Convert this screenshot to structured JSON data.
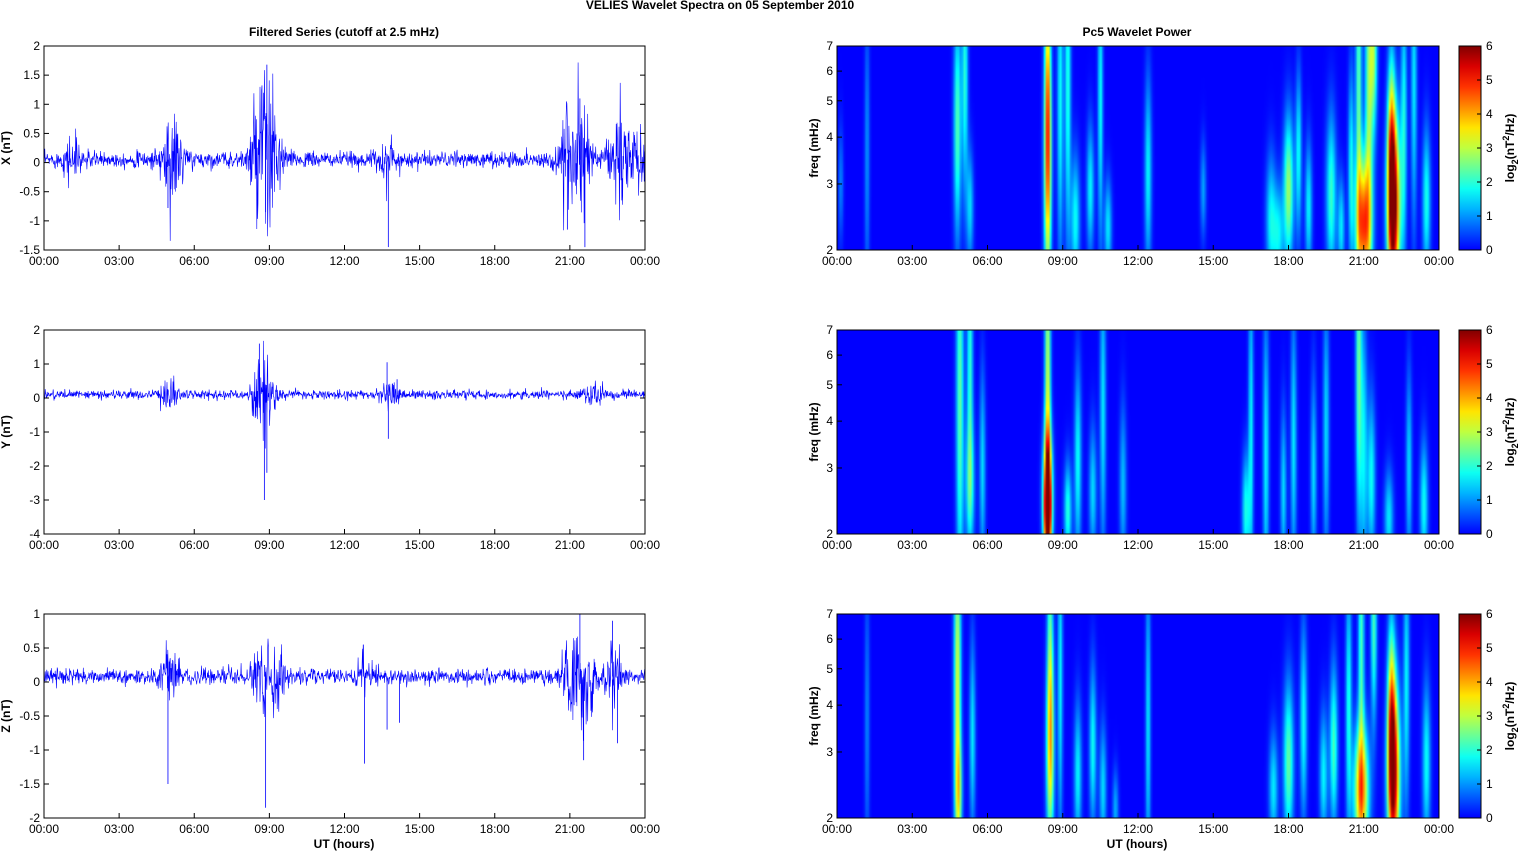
{
  "figure": {
    "title": "VELIES Wavelet Spectra on 05 September 2010",
    "left_title": "Filtered Series (cutoff at 2.5 mHz)",
    "right_title": "Pc5 Wavelet Power",
    "xlabel": "UT (hours)"
  },
  "colors": {
    "trace": "#0000ff",
    "background": "#00008f"
  },
  "chart_data": [
    {
      "type": "line",
      "name": "x-series",
      "ylabel": "X (nT)",
      "x_ticks": [
        "00:00",
        "03:00",
        "06:00",
        "09:00",
        "12:00",
        "15:00",
        "18:00",
        "21:00",
        "00:00"
      ],
      "xlim": [
        0,
        24
      ],
      "ylim": [
        -1.5,
        2
      ],
      "y_ticks": [
        "2",
        "1.5",
        "1",
        "0.5",
        "0",
        "-0.5",
        "-1",
        "-1.5"
      ],
      "y_tick_values": [
        2,
        1.5,
        1,
        0.5,
        0,
        -0.5,
        -1,
        -1.5
      ],
      "baseline": 0.05,
      "noise": 0.12,
      "bursts": [
        {
          "t": 1.2,
          "amp": 0.35
        },
        {
          "t": 4.9,
          "amp": 0.55
        },
        {
          "t": 5.3,
          "amp": 0.4
        },
        {
          "t": 8.5,
          "amp": 0.55
        },
        {
          "t": 8.9,
          "amp": 1.3
        },
        {
          "t": 9.3,
          "amp": 0.35
        },
        {
          "t": 13.7,
          "amp": 0.3
        },
        {
          "t": 20.8,
          "amp": 0.85
        },
        {
          "t": 21.5,
          "amp": 1.05
        },
        {
          "t": 22.9,
          "amp": 0.75
        },
        {
          "t": 23.7,
          "amp": 0.5
        }
      ],
      "spikes": [
        {
          "t": 8.9,
          "y": 1.68
        },
        {
          "t": 8.85,
          "y": -0.85
        },
        {
          "t": 13.75,
          "y": -1.45
        },
        {
          "t": 4.95,
          "y": -0.78
        },
        {
          "t": 21.6,
          "y": -1.45
        },
        {
          "t": 21.4,
          "y": 1.1
        },
        {
          "t": 20.9,
          "y": -1.15
        }
      ]
    },
    {
      "type": "line",
      "name": "y-series",
      "ylabel": "Y (nT)",
      "x_ticks": [
        "00:00",
        "03:00",
        "06:00",
        "09:00",
        "12:00",
        "15:00",
        "18:00",
        "21:00",
        "00:00"
      ],
      "xlim": [
        0,
        24
      ],
      "ylim": [
        -4,
        2
      ],
      "y_ticks": [
        "2",
        "1",
        "0",
        "-1",
        "-2",
        "-3",
        "-4"
      ],
      "y_tick_values": [
        2,
        1,
        0,
        -1,
        -2,
        -3,
        -4
      ],
      "baseline": 0.1,
      "noise": 0.12,
      "bursts": [
        {
          "t": 5.0,
          "amp": 0.5
        },
        {
          "t": 8.7,
          "amp": 0.9
        },
        {
          "t": 8.9,
          "amp": 0.5
        },
        {
          "t": 13.8,
          "amp": 0.3
        },
        {
          "t": 22.0,
          "amp": 0.25
        }
      ],
      "spikes": [
        {
          "t": 8.6,
          "y": 1.6
        },
        {
          "t": 8.8,
          "y": -3.0
        },
        {
          "t": 8.9,
          "y": -2.2
        },
        {
          "t": 13.7,
          "y": 1.05
        },
        {
          "t": 13.75,
          "y": -1.2
        },
        {
          "t": 14.1,
          "y": 0.55
        }
      ]
    },
    {
      "type": "line",
      "name": "z-series",
      "ylabel": "Z (nT)",
      "x_ticks": [
        "00:00",
        "03:00",
        "06:00",
        "09:00",
        "12:00",
        "15:00",
        "18:00",
        "21:00",
        "00:00"
      ],
      "xlim": [
        0,
        24
      ],
      "ylim": [
        -2,
        1
      ],
      "y_ticks": [
        "1",
        "0.5",
        "0",
        "-0.5",
        "-1",
        "-1.5",
        "-2"
      ],
      "y_tick_values": [
        1,
        0.5,
        0,
        -0.5,
        -1,
        -1.5,
        -2
      ],
      "baseline": 0.08,
      "noise": 0.1,
      "bursts": [
        {
          "t": 5.0,
          "amp": 0.35
        },
        {
          "t": 8.7,
          "amp": 0.4
        },
        {
          "t": 9.3,
          "amp": 0.3
        },
        {
          "t": 12.8,
          "amp": 0.25
        },
        {
          "t": 21.0,
          "amp": 0.5
        },
        {
          "t": 21.6,
          "amp": 0.6
        },
        {
          "t": 22.7,
          "amp": 0.5
        }
      ],
      "spikes": [
        {
          "t": 4.95,
          "y": -1.5
        },
        {
          "t": 5.0,
          "y": 0.3
        },
        {
          "t": 8.85,
          "y": -1.85
        },
        {
          "t": 8.8,
          "y": 0.25
        },
        {
          "t": 12.8,
          "y": -1.2
        },
        {
          "t": 12.75,
          "y": 0.55
        },
        {
          "t": 13.7,
          "y": -0.7
        },
        {
          "t": 14.2,
          "y": -0.6
        },
        {
          "t": 21.4,
          "y": 1.0
        },
        {
          "t": 21.55,
          "y": -1.15
        },
        {
          "t": 22.7,
          "y": 0.9
        },
        {
          "t": 22.9,
          "y": -0.9
        }
      ]
    },
    {
      "type": "heatmap",
      "name": "x-wavelet",
      "ylabel": "freq (mHz)",
      "cbar_label": "log2(nT2/Hz)",
      "x_ticks": [
        "00:00",
        "03:00",
        "06:00",
        "09:00",
        "12:00",
        "15:00",
        "18:00",
        "21:00",
        "00:00"
      ],
      "xlim": [
        0,
        24
      ],
      "ylim": [
        2,
        7
      ],
      "y_scale": "log",
      "y_ticks": [
        "7",
        "6",
        "5",
        "4",
        "3",
        "2"
      ],
      "y_tick_values": [
        7,
        6,
        5,
        4,
        3,
        2
      ],
      "clim": [
        0,
        6
      ],
      "cbar_ticks": [
        "6",
        "5",
        "4",
        "3",
        "2",
        "1",
        "0"
      ],
      "cbar_tick_values": [
        6,
        5,
        4,
        3,
        2,
        1,
        0
      ],
      "blobs": [
        {
          "t": 0.15,
          "f": 3.0,
          "v": 0.9,
          "w": 0.1,
          "h": 0.35
        },
        {
          "t": 1.2,
          "f": 3.6,
          "v": 1.0,
          "w": 0.1,
          "h": 0.9
        },
        {
          "t": 4.8,
          "f": 4.3,
          "v": 2.3,
          "w": 0.15,
          "h": 0.7
        },
        {
          "t": 5.1,
          "f": 5.8,
          "v": 2.0,
          "w": 0.12,
          "h": 0.7
        },
        {
          "t": 5.3,
          "f": 2.6,
          "v": 1.5,
          "w": 0.14,
          "h": 0.35
        },
        {
          "t": 8.4,
          "f": 3.3,
          "v": 3.4,
          "w": 0.15,
          "h": 0.8
        },
        {
          "t": 8.4,
          "f": 5.5,
          "v": 2.4,
          "w": 0.12,
          "h": 0.8
        },
        {
          "t": 8.9,
          "f": 5.0,
          "v": 1.8,
          "w": 0.12,
          "h": 1.0
        },
        {
          "t": 9.2,
          "f": 5.5,
          "v": 2.0,
          "w": 0.12,
          "h": 1.0
        },
        {
          "t": 9.5,
          "f": 2.4,
          "v": 1.8,
          "w": 0.18,
          "h": 0.4
        },
        {
          "t": 10.1,
          "f": 2.9,
          "v": 1.7,
          "w": 0.15,
          "h": 0.4
        },
        {
          "t": 10.5,
          "f": 5.0,
          "v": 1.8,
          "w": 0.1,
          "h": 0.9
        },
        {
          "t": 10.8,
          "f": 2.3,
          "v": 1.6,
          "w": 0.15,
          "h": 0.3
        },
        {
          "t": 12.4,
          "f": 3.2,
          "v": 1.7,
          "w": 0.14,
          "h": 0.6
        },
        {
          "t": 14.6,
          "f": 2.9,
          "v": 1.1,
          "w": 0.12,
          "h": 0.3
        },
        {
          "t": 17.3,
          "f": 2.4,
          "v": 1.7,
          "w": 0.2,
          "h": 0.4
        },
        {
          "t": 17.6,
          "f": 2.2,
          "v": 1.6,
          "w": 0.2,
          "h": 0.3
        },
        {
          "t": 18.0,
          "f": 2.9,
          "v": 2.8,
          "w": 0.2,
          "h": 0.45
        },
        {
          "t": 18.4,
          "f": 3.6,
          "v": 1.8,
          "w": 0.12,
          "h": 0.5
        },
        {
          "t": 18.8,
          "f": 2.6,
          "v": 1.7,
          "w": 0.14,
          "h": 0.4
        },
        {
          "t": 19.7,
          "f": 2.8,
          "v": 2.1,
          "w": 0.2,
          "h": 0.5
        },
        {
          "t": 20.1,
          "f": 2.3,
          "v": 1.6,
          "w": 0.14,
          "h": 0.3
        },
        {
          "t": 20.5,
          "f": 3.3,
          "v": 1.8,
          "w": 0.12,
          "h": 0.6
        },
        {
          "t": 20.8,
          "f": 5.2,
          "v": 2.4,
          "w": 0.12,
          "h": 1.1
        },
        {
          "t": 21.0,
          "f": 2.35,
          "v": 4.6,
          "w": 0.3,
          "h": 0.4
        },
        {
          "t": 21.2,
          "f": 5.5,
          "v": 2.6,
          "w": 0.15,
          "h": 1.0
        },
        {
          "t": 21.4,
          "f": 6.7,
          "v": 2.5,
          "w": 0.14,
          "h": 0.5
        },
        {
          "t": 22.2,
          "f": 2.6,
          "v": 6.0,
          "w": 0.25,
          "h": 0.55
        },
        {
          "t": 22.1,
          "f": 3.6,
          "v": 3.4,
          "w": 0.15,
          "h": 0.6
        },
        {
          "t": 22.6,
          "f": 4.5,
          "v": 1.8,
          "w": 0.12,
          "h": 0.8
        },
        {
          "t": 23.0,
          "f": 5.5,
          "v": 1.6,
          "w": 0.12,
          "h": 0.9
        },
        {
          "t": 23.5,
          "f": 2.7,
          "v": 1.9,
          "w": 0.16,
          "h": 0.45
        }
      ]
    },
    {
      "type": "heatmap",
      "name": "y-wavelet",
      "ylabel": "freq (mHz)",
      "cbar_label": "log2(nT2/Hz)",
      "x_ticks": [
        "00:00",
        "03:00",
        "06:00",
        "09:00",
        "12:00",
        "15:00",
        "18:00",
        "21:00",
        "00:00"
      ],
      "xlim": [
        0,
        24
      ],
      "ylim": [
        2,
        7
      ],
      "y_scale": "log",
      "y_ticks": [
        "7",
        "6",
        "5",
        "4",
        "3",
        "2"
      ],
      "y_tick_values": [
        7,
        6,
        5,
        4,
        3,
        2
      ],
      "clim": [
        0,
        6
      ],
      "cbar_ticks": [
        "6",
        "5",
        "4",
        "3",
        "2",
        "1",
        "0"
      ],
      "cbar_tick_values": [
        6,
        5,
        4,
        3,
        2,
        1,
        0
      ],
      "blobs": [
        {
          "t": 4.9,
          "f": 4.5,
          "v": 2.4,
          "w": 0.15,
          "h": 1.2
        },
        {
          "t": 5.3,
          "f": 2.7,
          "v": 1.9,
          "w": 0.18,
          "h": 0.4
        },
        {
          "t": 5.3,
          "f": 5.8,
          "v": 2.0,
          "w": 0.12,
          "h": 0.8
        },
        {
          "t": 5.8,
          "f": 3.0,
          "v": 1.5,
          "w": 0.12,
          "h": 0.6
        },
        {
          "t": 8.4,
          "f": 2.65,
          "v": 4.8,
          "w": 0.18,
          "h": 0.35
        },
        {
          "t": 8.4,
          "f": 4.5,
          "v": 3.1,
          "w": 0.12,
          "h": 1.3
        },
        {
          "t": 8.4,
          "f": 2.15,
          "v": 3.0,
          "w": 0.16,
          "h": 0.25
        },
        {
          "t": 9.2,
          "f": 2.3,
          "v": 2.0,
          "w": 0.15,
          "h": 0.3
        },
        {
          "t": 9.6,
          "f": 3.1,
          "v": 1.8,
          "w": 0.14,
          "h": 0.6
        },
        {
          "t": 10.2,
          "f": 2.6,
          "v": 1.5,
          "w": 0.15,
          "h": 0.4
        },
        {
          "t": 10.6,
          "f": 4.3,
          "v": 1.6,
          "w": 0.12,
          "h": 0.9
        },
        {
          "t": 11.4,
          "f": 2.7,
          "v": 1.3,
          "w": 0.14,
          "h": 0.5
        },
        {
          "t": 16.3,
          "f": 2.3,
          "v": 1.9,
          "w": 0.15,
          "h": 0.35
        },
        {
          "t": 16.5,
          "f": 3.8,
          "v": 1.7,
          "w": 0.1,
          "h": 1.0
        },
        {
          "t": 17.1,
          "f": 3.2,
          "v": 1.7,
          "w": 0.12,
          "h": 0.9
        },
        {
          "t": 17.8,
          "f": 2.6,
          "v": 1.5,
          "w": 0.12,
          "h": 0.5
        },
        {
          "t": 18.2,
          "f": 3.5,
          "v": 1.6,
          "w": 0.12,
          "h": 0.8
        },
        {
          "t": 19.0,
          "f": 2.9,
          "v": 1.5,
          "w": 0.12,
          "h": 0.6
        },
        {
          "t": 19.5,
          "f": 3.8,
          "v": 1.5,
          "w": 0.12,
          "h": 0.8
        },
        {
          "t": 20.8,
          "f": 5.7,
          "v": 2.4,
          "w": 0.12,
          "h": 1.0
        },
        {
          "t": 21.0,
          "f": 3.4,
          "v": 1.6,
          "w": 0.14,
          "h": 0.8
        },
        {
          "t": 21.3,
          "f": 2.8,
          "v": 1.8,
          "w": 0.16,
          "h": 0.5
        },
        {
          "t": 22.0,
          "f": 2.2,
          "v": 1.6,
          "w": 0.18,
          "h": 0.3
        },
        {
          "t": 22.8,
          "f": 3.0,
          "v": 1.5,
          "w": 0.12,
          "h": 0.6
        },
        {
          "t": 23.4,
          "f": 2.4,
          "v": 1.8,
          "w": 0.16,
          "h": 0.4
        }
      ]
    },
    {
      "type": "heatmap",
      "name": "z-wavelet",
      "ylabel": "freq (mHz)",
      "cbar_label": "log2(nT2/Hz)",
      "x_ticks": [
        "00:00",
        "03:00",
        "06:00",
        "09:00",
        "12:00",
        "15:00",
        "18:00",
        "21:00",
        "00:00"
      ],
      "xlim": [
        0,
        24
      ],
      "ylim": [
        2,
        7
      ],
      "y_scale": "log",
      "y_ticks": [
        "7",
        "6",
        "5",
        "4",
        "3",
        "2"
      ],
      "y_tick_values": [
        7,
        6,
        5,
        4,
        3,
        2
      ],
      "clim": [
        0,
        6
      ],
      "cbar_ticks": [
        "6",
        "5",
        "4",
        "3",
        "2",
        "1",
        "0"
      ],
      "cbar_tick_values": [
        6,
        5,
        4,
        3,
        2,
        1,
        0
      ],
      "blobs": [
        {
          "t": 1.2,
          "f": 3.6,
          "v": 0.9,
          "w": 0.1,
          "h": 0.9
        },
        {
          "t": 4.8,
          "f": 4.6,
          "v": 3.2,
          "w": 0.14,
          "h": 1.0
        },
        {
          "t": 4.85,
          "f": 2.3,
          "v": 2.1,
          "w": 0.14,
          "h": 0.35
        },
        {
          "t": 5.4,
          "f": 3.3,
          "v": 1.6,
          "w": 0.12,
          "h": 0.6
        },
        {
          "t": 8.5,
          "f": 3.0,
          "v": 3.0,
          "w": 0.16,
          "h": 0.6
        },
        {
          "t": 8.5,
          "f": 5.5,
          "v": 2.0,
          "w": 0.12,
          "h": 0.8
        },
        {
          "t": 8.9,
          "f": 4.8,
          "v": 1.7,
          "w": 0.1,
          "h": 1.0
        },
        {
          "t": 9.6,
          "f": 2.6,
          "v": 1.7,
          "w": 0.15,
          "h": 0.45
        },
        {
          "t": 10.2,
          "f": 3.1,
          "v": 1.8,
          "w": 0.14,
          "h": 0.5
        },
        {
          "t": 10.6,
          "f": 2.4,
          "v": 1.5,
          "w": 0.14,
          "h": 0.4
        },
        {
          "t": 11.1,
          "f": 2.1,
          "v": 1.2,
          "w": 0.12,
          "h": 0.25
        },
        {
          "t": 12.4,
          "f": 3.5,
          "v": 1.6,
          "w": 0.1,
          "h": 1.0
        },
        {
          "t": 17.4,
          "f": 2.4,
          "v": 1.6,
          "w": 0.18,
          "h": 0.35
        },
        {
          "t": 18.0,
          "f": 2.8,
          "v": 2.4,
          "w": 0.2,
          "h": 0.5
        },
        {
          "t": 18.6,
          "f": 3.6,
          "v": 1.8,
          "w": 0.14,
          "h": 0.6
        },
        {
          "t": 19.4,
          "f": 2.6,
          "v": 1.7,
          "w": 0.16,
          "h": 0.4
        },
        {
          "t": 19.8,
          "f": 3.1,
          "v": 2.2,
          "w": 0.16,
          "h": 0.5
        },
        {
          "t": 20.4,
          "f": 4.0,
          "v": 1.9,
          "w": 0.12,
          "h": 0.8
        },
        {
          "t": 20.9,
          "f": 2.35,
          "v": 4.2,
          "w": 0.3,
          "h": 0.4
        },
        {
          "t": 20.9,
          "f": 5.8,
          "v": 2.2,
          "w": 0.12,
          "h": 0.9
        },
        {
          "t": 21.4,
          "f": 6.5,
          "v": 2.2,
          "w": 0.12,
          "h": 0.6
        },
        {
          "t": 22.2,
          "f": 2.6,
          "v": 5.6,
          "w": 0.24,
          "h": 0.55
        },
        {
          "t": 22.1,
          "f": 3.7,
          "v": 3.2,
          "w": 0.15,
          "h": 0.6
        },
        {
          "t": 22.7,
          "f": 4.6,
          "v": 1.7,
          "w": 0.12,
          "h": 0.8
        },
        {
          "t": 23.5,
          "f": 2.8,
          "v": 1.8,
          "w": 0.16,
          "h": 0.5
        }
      ]
    }
  ]
}
